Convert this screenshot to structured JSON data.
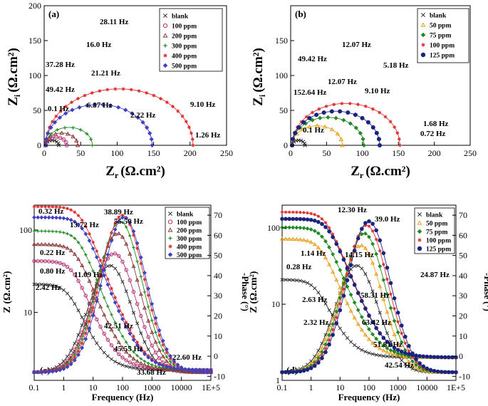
{
  "chart_data": [
    {
      "id": "a",
      "type": "scatter",
      "panel_label": "(a)",
      "xlabel": "Z",
      "xlabel_sub": "r",
      "ylabel": "Z",
      "ylabel_sub": "i",
      "unit": "(Ω.cm²)",
      "xlim": [
        0,
        250
      ],
      "ylim": [
        0,
        200
      ],
      "xticks": [
        "0",
        "50",
        "100",
        "150",
        "200",
        "250"
      ],
      "yticks": [
        "0",
        "50",
        "100",
        "150",
        "200"
      ],
      "series": [
        {
          "name": "blank",
          "color": "#333333",
          "marker": "x",
          "rs": 2,
          "rct": 18
        },
        {
          "name": "100 ppm",
          "color": "#b03070",
          "marker": "o",
          "rs": 2,
          "rct": 29
        },
        {
          "name": "200 ppm",
          "color": "#8b3a3a",
          "marker": "tri",
          "rs": 2,
          "rct": 44
        },
        {
          "name": "300 ppm",
          "color": "#228b22",
          "marker": "plus",
          "rs": 2,
          "rct": 64
        },
        {
          "name": "400 ppm",
          "color": "#e03030",
          "marker": "star",
          "rs": 2,
          "rct": 202
        },
        {
          "name": "500 ppm",
          "color": "#4040c0",
          "marker": "diamond",
          "rs": 2,
          "rct": 146
        }
      ],
      "annotations": [
        "28.11 Hz",
        "16.0 Hz",
        "37.28 Hz",
        "21.21 Hz",
        "49.42 Hz",
        "0.1 Hz",
        "6.87 Hz",
        "2.22 Hz",
        "9.10 Hz",
        "1.26 Hz"
      ]
    },
    {
      "id": "b",
      "type": "scatter",
      "panel_label": "(b)",
      "xlabel": "Z",
      "xlabel_sub": "r",
      "ylabel": "Z",
      "ylabel_sub": "i",
      "unit": "(Ω.cm²)",
      "xlim": [
        0,
        250
      ],
      "ylim": [
        0,
        200
      ],
      "xticks": [
        "0",
        "50",
        "100",
        "150",
        "200",
        "250"
      ],
      "yticks": [
        "0",
        "50",
        "100",
        "150"
      ],
      "series": [
        {
          "name": "blank",
          "color": "#333333",
          "marker": "x",
          "rs": 2,
          "rct": 18
        },
        {
          "name": "50 ppm",
          "color": "#e8a020",
          "marker": "tri",
          "rs": 2,
          "rct": 70
        },
        {
          "name": "75 ppm",
          "color": "#228b22",
          "marker": "diamond",
          "rs": 2,
          "rct": 100
        },
        {
          "name": "100 ppm",
          "color": "#e03030",
          "marker": "star",
          "rs": 2,
          "rct": 150
        },
        {
          "name": "125 ppm",
          "color": "#1a237e",
          "marker": "dot",
          "rs": 2,
          "rct": 122
        }
      ],
      "annotations": [
        "12.07 Hz",
        "49.42 Hz",
        "12.07 Hz",
        "5.18 Hz",
        "152.64 Hz",
        "9.10 Hz",
        "1.68 Hz",
        "0.1 Hz",
        "0.72 Hz"
      ]
    },
    {
      "id": "c",
      "type": "line",
      "panel_label": "(c)",
      "xlabel": "Frequency (Hz)",
      "ylabel": "Z (Ω.cm²)",
      "y2label": "-Phase (°)",
      "xticks": [
        "0.1",
        "1",
        "10",
        "100",
        "1000",
        "10000",
        "1E+5"
      ],
      "yticks": [
        "10",
        "100"
      ],
      "y2ticks": [
        "-10",
        "0",
        "10",
        "20",
        "30",
        "40",
        "50",
        "60",
        "70"
      ],
      "xlim": [
        0.1,
        100000
      ],
      "ylim_log": [
        1.5,
        200
      ],
      "y2lim": [
        -12,
        75
      ],
      "series": [
        {
          "name": "blank",
          "color": "#333333",
          "marker": "x",
          "z0": 20,
          "pmax": 45
        },
        {
          "name": "100 ppm",
          "color": "#b03070",
          "marker": "o",
          "z0": 40,
          "pmax": 51
        },
        {
          "name": "200 ppm",
          "color": "#8b3a3a",
          "marker": "tri",
          "z0": 65,
          "pmax": 61
        },
        {
          "name": "300 ppm",
          "color": "#228b22",
          "marker": "plus",
          "z0": 95,
          "pmax": 67
        },
        {
          "name": "400 ppm",
          "color": "#e03030",
          "marker": "star",
          "z0": 190,
          "pmax": 70
        },
        {
          "name": "500 ppm",
          "color": "#4040c0",
          "marker": "diamond",
          "z0": 140,
          "pmax": 69
        }
      ],
      "annotations": [
        "0.32 Hz",
        "38.89 Hz",
        "55.50 Hz",
        "13.72 Hz",
        "0.22 Hz",
        "0.80 Hz",
        "11.09 Hz",
        "2.42 Hz",
        "42.51 Hz",
        "45.55 Hz",
        "22.60 Hz",
        "33.68 Hz"
      ]
    },
    {
      "id": "d",
      "type": "line",
      "panel_label": "(d)",
      "xlabel": "Frequency (Hz)",
      "ylabel": "Z (Ω.cm²)",
      "y2label": "-Phase (°)",
      "xticks": [
        "0.1",
        "1",
        "10",
        "100",
        "1000",
        "10000",
        "1E+5"
      ],
      "yticks": [
        "1",
        "10",
        "100"
      ],
      "y2ticks": [
        "-10",
        "0",
        "10",
        "20",
        "30",
        "40",
        "50",
        "60",
        "70"
      ],
      "xlim": [
        0.1,
        100000
      ],
      "ylim_log": [
        1,
        200
      ],
      "y2lim": [
        -12,
        75
      ],
      "series": [
        {
          "name": "blank",
          "color": "#333333",
          "marker": "x",
          "z0": 19,
          "pmax": 45
        },
        {
          "name": "50 ppm",
          "color": "#e8a020",
          "marker": "tri",
          "z0": 70,
          "pmax": 55
        },
        {
          "name": "75 ppm",
          "color": "#228b22",
          "marker": "diamond",
          "z0": 100,
          "pmax": 61
        },
        {
          "name": "100 ppm",
          "color": "#e03030",
          "marker": "star",
          "z0": 160,
          "pmax": 65
        },
        {
          "name": "125 ppm",
          "color": "#1a237e",
          "marker": "dot",
          "z0": 130,
          "pmax": 67
        }
      ],
      "annotations": [
        "12.30 Hz",
        "39.0 Hz",
        "1.14 Hz",
        "14.15 Hz",
        "0.28 Hz",
        "24.87 Hz",
        "58.31 Hz",
        "2.63 Hz",
        "63.42 Hz",
        "2.32 Hz",
        "51.81 Hz",
        "42.54 Hz"
      ]
    }
  ]
}
